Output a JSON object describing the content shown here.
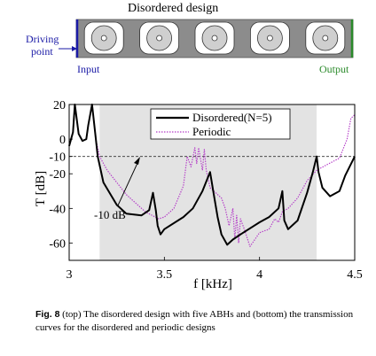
{
  "top": {
    "title": "Disordered design",
    "driving_label_1": "Driving",
    "driving_label_2": "point",
    "input_label": "Input",
    "output_label": "Output",
    "abh_count": 5,
    "colors": {
      "beam_fill": "#8c8c8c",
      "input_line": "#1a1aa6",
      "output_line": "#2a8a2a",
      "driving_text": "#1a1aa6",
      "output_text": "#2a8a2a"
    }
  },
  "chart_data": {
    "type": "line",
    "title": "",
    "xlabel": "f [kHz]",
    "ylabel": "T [dB]",
    "xlim": [
      3,
      4.5
    ],
    "ylim": [
      -70,
      20
    ],
    "xticks": [
      "3",
      "3.5",
      "4",
      "4.5"
    ],
    "yticks": [
      "20",
      "0",
      "-10",
      "-20",
      "-40",
      "-60"
    ],
    "reference_line": {
      "y": -10,
      "style": "dashed",
      "annotation": "-10 dB"
    },
    "stop_bands": [
      [
        3.16,
        4.3
      ]
    ],
    "legend_position": "top-right",
    "series": [
      {
        "name": "Disordered(N=5)",
        "style": "solid",
        "color": "#000000",
        "x": [
          3.0,
          3.02,
          3.03,
          3.05,
          3.07,
          3.09,
          3.1,
          3.12,
          3.14,
          3.15,
          3.18,
          3.25,
          3.3,
          3.38,
          3.42,
          3.44,
          3.455,
          3.465,
          3.48,
          3.5,
          3.6,
          3.65,
          3.7,
          3.74,
          3.76,
          3.78,
          3.8,
          3.83,
          3.86,
          3.9,
          4.0,
          4.05,
          4.1,
          4.12,
          4.13,
          4.15,
          4.2,
          4.25,
          4.28,
          4.3,
          4.31,
          4.33,
          4.37,
          4.42,
          4.45,
          4.5
        ],
        "y": [
          -4,
          4,
          20,
          3,
          -1,
          0,
          8,
          20,
          0,
          -10,
          -25,
          -38,
          -43,
          -44,
          -41,
          -31,
          -41,
          -50,
          -55,
          -52,
          -45,
          -40,
          -30,
          -19,
          -32,
          -45,
          -55,
          -61,
          -58,
          -55,
          -48,
          -45,
          -40,
          -30,
          -47,
          -52,
          -47,
          -31,
          -19,
          -10,
          -19,
          -28,
          -33,
          -30,
          -21,
          -10
        ]
      },
      {
        "name": "Periodic",
        "style": "dotted",
        "color": "#b43cc8",
        "x": [
          3.0,
          3.02,
          3.03,
          3.05,
          3.07,
          3.09,
          3.1,
          3.12,
          3.14,
          3.16,
          3.2,
          3.3,
          3.4,
          3.47,
          3.5,
          3.55,
          3.6,
          3.62,
          3.64,
          3.66,
          3.67,
          3.68,
          3.7,
          3.71,
          3.72,
          3.74,
          3.8,
          3.82,
          3.84,
          3.86,
          3.87,
          3.88,
          3.89,
          3.9,
          3.92,
          3.95,
          4.0,
          4.05,
          4.08,
          4.1,
          4.12,
          4.15,
          4.2,
          4.25,
          4.3,
          4.35,
          4.42,
          4.46,
          4.48,
          4.5
        ],
        "y": [
          -4,
          4,
          20,
          3,
          -1,
          0,
          8,
          20,
          0,
          -10,
          -18,
          -32,
          -42,
          -46,
          -45,
          -40,
          -27,
          -10,
          -16,
          -5,
          -14,
          -5,
          -18,
          -6,
          -18,
          -28,
          -34,
          -40,
          -50,
          -40,
          -58,
          -44,
          -60,
          -46,
          -52,
          -62,
          -54,
          -52,
          -46,
          -48,
          -42,
          -40,
          -34,
          -24,
          -18,
          -15,
          -11,
          0,
          12,
          14
        ]
      }
    ]
  },
  "caption": {
    "label": "Fig. 8",
    "text": " (top) The disordered design with five ABHs and (bottom) the transmission curves for the disordered and periodic designs"
  }
}
